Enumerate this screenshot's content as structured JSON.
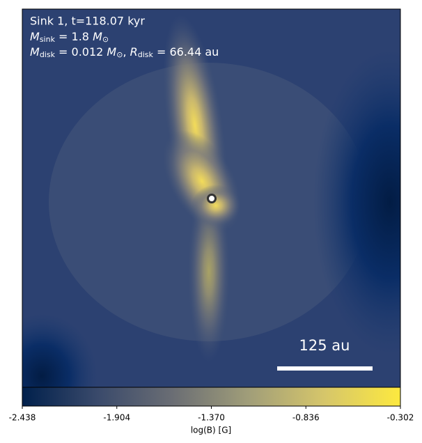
{
  "chart_data": {
    "type": "image",
    "annotations": {
      "title": "Sink 1, t=118.07 kyr",
      "sink_mass": [
        "M",
        "sink",
        " = 1.8 ",
        "M",
        "⊙"
      ],
      "disk": [
        "M",
        "disk",
        " = 0.012 ",
        "M",
        "⊙",
        ", ",
        "R",
        "disk",
        " = 66.44 au"
      ],
      "scale_bar": "125 au"
    },
    "colorbar": {
      "label": "log(B) [G]",
      "clim": [
        -2.438,
        -0.302
      ],
      "ticks": [
        -2.438,
        -1.904,
        {
          "value": -1.37,
          "label": "-1.370"
        },
        -0.836,
        -0.302
      ],
      "colormap": [
        "#00204c",
        "#3a4a6b",
        "#6b6e74",
        "#a19e79",
        "#d6c66a",
        "#fde93f"
      ]
    }
  }
}
